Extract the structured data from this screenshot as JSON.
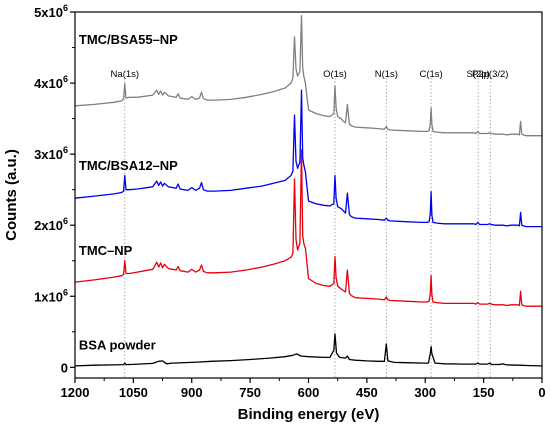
{
  "chart_data": {
    "type": "line",
    "xlabel": "Binding energy (eV)",
    "ylabel": "Counts (a.u.)",
    "xlim": [
      1200,
      0
    ],
    "ylim": [
      -150000,
      5000000
    ],
    "x_ticks": [
      1200,
      1050,
      900,
      750,
      600,
      450,
      300,
      150,
      0
    ],
    "y_ticks": [
      {
        "value": 0,
        "base": "0",
        "exp": ""
      },
      {
        "value": 1000000,
        "base": "1x10",
        "exp": "6"
      },
      {
        "value": 2000000,
        "base": "2x10",
        "exp": "6"
      },
      {
        "value": 3000000,
        "base": "3x10",
        "exp": "6"
      },
      {
        "value": 4000000,
        "base": "4x10",
        "exp": "6"
      },
      {
        "value": 5000000,
        "base": "5x10",
        "exp": "6"
      }
    ],
    "grid": false,
    "legend": "none",
    "annotations": [
      {
        "text": "Na(1s)",
        "x": 1072
      },
      {
        "text": "O(1s)",
        "x": 532
      },
      {
        "text": "N(1s)",
        "x": 400
      },
      {
        "text": "C(1s)",
        "x": 285
      },
      {
        "text": "S(2p)",
        "x": 164
      },
      {
        "text": "P2p(3/2)",
        "x": 133
      }
    ],
    "series": [
      {
        "name": "BSA powder",
        "color": "#000000",
        "x": [
          1200,
          1150,
          1100,
          1075,
          1072,
          1069,
          1050,
          1000,
          985,
          975,
          965,
          950,
          900,
          880,
          850,
          800,
          750,
          700,
          660,
          640,
          630,
          620,
          600,
          560,
          545,
          535,
          532,
          528,
          520,
          505,
          500,
          495,
          480,
          450,
          420,
          405,
          400,
          396,
          380,
          350,
          300,
          292,
          287,
          285,
          283,
          275,
          250,
          200,
          170,
          165,
          160,
          140,
          134,
          130,
          110,
          100,
          95,
          90,
          60,
          30,
          0
        ],
        "values": [
          20000,
          30000,
          35000,
          38000,
          60000,
          38000,
          42000,
          55000,
          85000,
          90000,
          50000,
          60000,
          70000,
          75000,
          85000,
          95000,
          110000,
          130000,
          150000,
          170000,
          190000,
          160000,
          150000,
          140000,
          140000,
          240000,
          470000,
          200000,
          140000,
          130000,
          160000,
          110000,
          100000,
          90000,
          85000,
          85000,
          330000,
          90000,
          70000,
          65000,
          60000,
          60000,
          200000,
          290000,
          190000,
          60000,
          50000,
          45000,
          45000,
          60000,
          45000,
          45000,
          60000,
          40000,
          40000,
          50000,
          40000,
          35000,
          30000,
          25000,
          20000
        ]
      },
      {
        "name": "TMC–NP",
        "color": "#e8000b",
        "x": [
          1200,
          1150,
          1100,
          1080,
          1075,
          1072,
          1069,
          1060,
          1040,
          1000,
          990,
          985,
          980,
          975,
          970,
          960,
          950,
          940,
          935,
          930,
          920,
          910,
          900,
          890,
          880,
          875,
          870,
          860,
          840,
          800,
          760,
          720,
          690,
          660,
          645,
          640,
          636,
          632,
          628,
          625,
          622,
          618,
          615,
          612,
          610,
          608,
          600,
          580,
          560,
          545,
          540,
          535,
          532,
          529,
          525,
          515,
          510,
          505,
          500,
          495,
          490,
          480,
          450,
          420,
          405,
          400,
          396,
          390,
          350,
          310,
          295,
          290,
          287,
          285,
          283,
          280,
          270,
          250,
          220,
          200,
          175,
          170,
          165,
          160,
          150,
          140,
          135,
          130,
          120,
          100,
          90,
          80,
          70,
          62,
          58,
          55,
          52,
          48,
          40,
          20,
          0
        ],
        "values": [
          1200000,
          1230000,
          1270000,
          1290000,
          1310000,
          1500000,
          1320000,
          1320000,
          1340000,
          1380000,
          1480000,
          1410000,
          1470000,
          1400000,
          1450000,
          1390000,
          1380000,
          1370000,
          1420000,
          1360000,
          1350000,
          1340000,
          1380000,
          1340000,
          1370000,
          1440000,
          1350000,
          1330000,
          1330000,
          1340000,
          1370000,
          1410000,
          1450000,
          1500000,
          1550000,
          1600000,
          2650000,
          1800000,
          1650000,
          1700000,
          1750000,
          3060000,
          1850000,
          1750000,
          1700000,
          1680000,
          1250000,
          1180000,
          1150000,
          1140000,
          1160000,
          1180000,
          1560000,
          1260000,
          1140000,
          1100000,
          1080000,
          1060000,
          1370000,
          1040000,
          1010000,
          980000,
          970000,
          960000,
          950000,
          990000,
          950000,
          940000,
          930000,
          920000,
          920000,
          930000,
          1040000,
          1290000,
          1020000,
          920000,
          910000,
          900000,
          900000,
          900000,
          900000,
          890000,
          910000,
          890000,
          890000,
          890000,
          900000,
          890000,
          880000,
          880000,
          870000,
          880000,
          880000,
          880000,
          870000,
          1070000,
          880000,
          870000,
          860000,
          860000,
          860000
        ]
      },
      {
        "name": "TMC/BSA12–NP",
        "color": "#0000ee",
        "x": [
          1200,
          1150,
          1100,
          1080,
          1075,
          1072,
          1069,
          1060,
          1040,
          1000,
          990,
          985,
          980,
          975,
          970,
          960,
          950,
          940,
          935,
          930,
          920,
          910,
          900,
          890,
          880,
          875,
          870,
          860,
          840,
          800,
          760,
          720,
          690,
          660,
          645,
          640,
          636,
          632,
          628,
          625,
          622,
          618,
          615,
          612,
          610,
          608,
          600,
          580,
          560,
          545,
          540,
          535,
          532,
          529,
          525,
          515,
          510,
          505,
          500,
          495,
          490,
          480,
          450,
          420,
          405,
          400,
          396,
          390,
          350,
          310,
          295,
          290,
          287,
          285,
          283,
          280,
          270,
          250,
          220,
          200,
          175,
          170,
          165,
          160,
          150,
          140,
          135,
          130,
          120,
          100,
          90,
          80,
          70,
          62,
          58,
          55,
          52,
          48,
          40,
          20,
          0
        ],
        "values": [
          2380000,
          2410000,
          2440000,
          2460000,
          2480000,
          2700000,
          2500000,
          2500000,
          2510000,
          2540000,
          2620000,
          2560000,
          2610000,
          2550000,
          2590000,
          2540000,
          2530000,
          2520000,
          2580000,
          2510000,
          2500000,
          2490000,
          2530000,
          2490000,
          2520000,
          2600000,
          2500000,
          2480000,
          2480000,
          2490000,
          2520000,
          2550000,
          2590000,
          2630000,
          2700000,
          2760000,
          3550000,
          2900000,
          2800000,
          2850000,
          2880000,
          3900000,
          2950000,
          2850000,
          2800000,
          2750000,
          2340000,
          2300000,
          2280000,
          2270000,
          2290000,
          2300000,
          2700000,
          2380000,
          2260000,
          2230000,
          2200000,
          2170000,
          2450000,
          2150000,
          2120000,
          2100000,
          2090000,
          2080000,
          2070000,
          2100000,
          2070000,
          2060000,
          2050000,
          2040000,
          2040000,
          2050000,
          2160000,
          2470000,
          2140000,
          2040000,
          2030000,
          2020000,
          2020000,
          2020000,
          2020000,
          2010000,
          2040000,
          2010000,
          2010000,
          2010000,
          2020000,
          2010000,
          2000000,
          2000000,
          1990000,
          2000000,
          2000000,
          2000000,
          1990000,
          2180000,
          2000000,
          1990000,
          1980000,
          1980000,
          1980000
        ]
      },
      {
        "name": "TMC/BSA55–NP",
        "color": "#808080",
        "x": [
          1200,
          1150,
          1100,
          1080,
          1075,
          1072,
          1069,
          1060,
          1040,
          1000,
          990,
          985,
          980,
          975,
          970,
          960,
          950,
          940,
          935,
          930,
          920,
          910,
          900,
          890,
          880,
          875,
          870,
          860,
          840,
          800,
          760,
          720,
          690,
          660,
          645,
          640,
          636,
          632,
          628,
          625,
          622,
          618,
          615,
          612,
          610,
          608,
          600,
          580,
          560,
          545,
          540,
          535,
          532,
          529,
          525,
          515,
          510,
          505,
          500,
          495,
          490,
          480,
          450,
          420,
          405,
          400,
          396,
          390,
          350,
          310,
          295,
          290,
          287,
          285,
          283,
          280,
          270,
          250,
          220,
          200,
          175,
          170,
          165,
          160,
          150,
          140,
          135,
          130,
          120,
          100,
          90,
          80,
          70,
          62,
          58,
          55,
          52,
          48,
          40,
          20,
          0
        ],
        "values": [
          3680000,
          3700000,
          3730000,
          3750000,
          3780000,
          3990000,
          3790000,
          3800000,
          3800000,
          3830000,
          3900000,
          3840000,
          3890000,
          3830000,
          3870000,
          3820000,
          3810000,
          3800000,
          3850000,
          3790000,
          3780000,
          3770000,
          3810000,
          3770000,
          3790000,
          3870000,
          3780000,
          3760000,
          3760000,
          3770000,
          3800000,
          3840000,
          3880000,
          3930000,
          4000000,
          4070000,
          4650000,
          4200000,
          4100000,
          4130000,
          4160000,
          4950000,
          4220000,
          4100000,
          4050000,
          4000000,
          3620000,
          3570000,
          3540000,
          3530000,
          3550000,
          3570000,
          3960000,
          3650000,
          3530000,
          3490000,
          3460000,
          3440000,
          3700000,
          3420000,
          3400000,
          3380000,
          3370000,
          3360000,
          3350000,
          3390000,
          3350000,
          3340000,
          3330000,
          3320000,
          3320000,
          3330000,
          3430000,
          3650000,
          3420000,
          3320000,
          3310000,
          3300000,
          3300000,
          3300000,
          3300000,
          3290000,
          3320000,
          3290000,
          3290000,
          3290000,
          3300000,
          3290000,
          3280000,
          3280000,
          3270000,
          3280000,
          3280000,
          3280000,
          3270000,
          3460000,
          3280000,
          3270000,
          3260000,
          3260000,
          3260000
        ]
      }
    ],
    "series_labels": [
      {
        "text": "BSA powder",
        "series": 0,
        "x": 1190,
        "y": 250000
      },
      {
        "text": "TMC–NP",
        "series": 1,
        "x": 1190,
        "y": 1580000
      },
      {
        "text": "TMC/BSA12–NP",
        "series": 2,
        "x": 1190,
        "y": 2780000
      },
      {
        "text": "TMC/BSA55–NP",
        "series": 3,
        "x": 1190,
        "y": 4550000
      }
    ]
  }
}
